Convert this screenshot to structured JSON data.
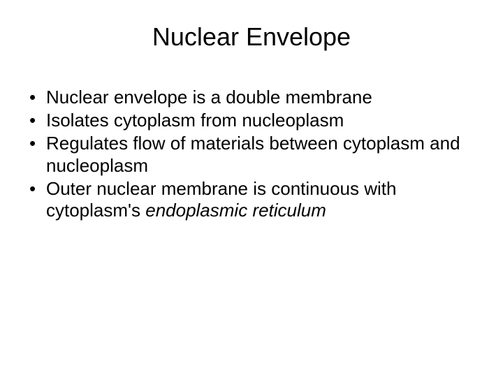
{
  "slide": {
    "title": "Nuclear Envelope",
    "title_fontsize": 36,
    "body_fontsize": 26,
    "background_color": "#ffffff",
    "text_color": "#000000",
    "bullets": [
      {
        "text": "Nuclear envelope is a double membrane"
      },
      {
        "text": "Isolates cytoplasm from nucleoplasm"
      },
      {
        "text": "Regulates flow of materials between cytoplasm and nucleoplasm"
      },
      {
        "text_prefix": "Outer nuclear membrane is continuous with cytoplasm's ",
        "text_italic": "endoplasmic reticulum"
      }
    ]
  }
}
